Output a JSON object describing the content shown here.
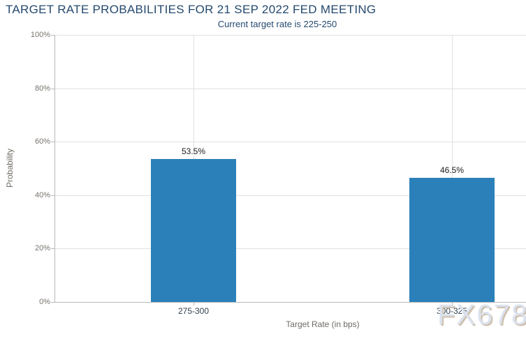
{
  "chart_data": {
    "type": "bar",
    "title": "TARGET RATE PROBABILITIES FOR 21 SEP 2022 FED MEETING",
    "subtitle": "Current target rate is 225-250",
    "categories": [
      "275-300",
      "300-325"
    ],
    "values": [
      53.5,
      46.5
    ],
    "value_labels": [
      "53.5%",
      "46.5%"
    ],
    "xlabel": "Target Rate (in bps)",
    "ylabel": "Probability",
    "ylim": [
      0,
      100
    ],
    "y_ticks": [
      "0%",
      "20%",
      "40%",
      "60%",
      "80%",
      "100%"
    ],
    "grid": true,
    "legend": false,
    "bar_color": "#2b80b9",
    "title_color": "#24496e",
    "watermark": "FX678"
  }
}
